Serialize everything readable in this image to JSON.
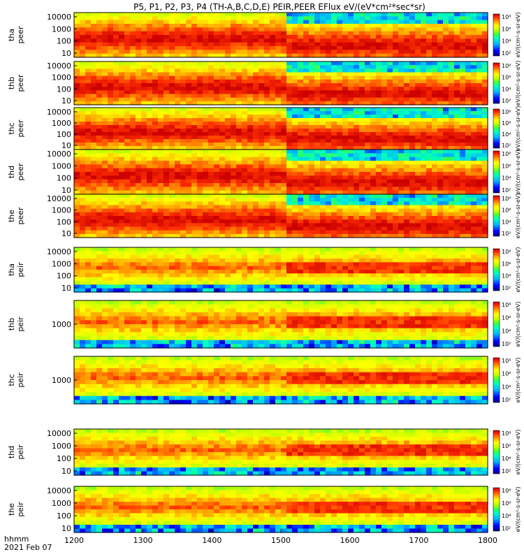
{
  "title": "P5, P1, P2, P3, P4 (TH-A,B,C,D,E) PEIR,PEER EFlux eV/(eV*cm²*sec*sr)",
  "time_label": "hhmm",
  "date_label": "2021 Feb 07",
  "colorbar_unit": "eV/(cm²-s-sr-eV)",
  "chart_data": {
    "type": "heatmap",
    "x_ticks": [
      "1200",
      "1300",
      "1400",
      "1500",
      "1600",
      "1700",
      "1800"
    ],
    "x_range": [
      1200,
      1800
    ],
    "colorbar_labels": [
      "10²",
      "10⁴",
      "10⁶",
      "10⁸"
    ],
    "panels": [
      {
        "label1": "tha",
        "label2": "peer",
        "ticks": [
          "10000",
          "1000",
          "100",
          "10"
        ]
      },
      {
        "label1": "thb",
        "label2": "peer",
        "ticks": [
          "10000",
          "1000",
          "100",
          "10"
        ]
      },
      {
        "label1": "thc",
        "label2": "peer",
        "ticks": [
          "10000",
          "1000",
          "100",
          "10"
        ]
      },
      {
        "label1": "thd",
        "label2": "peer",
        "ticks": [
          "10000",
          "1000",
          "100",
          "10"
        ]
      },
      {
        "label1": "the",
        "label2": "peer",
        "ticks": [
          "10000",
          "1000",
          "100",
          "10"
        ]
      },
      {
        "label1": "tha",
        "label2": "peir",
        "ticks": [
          "10000",
          "1000",
          "100",
          "10"
        ]
      },
      {
        "label1": "thb",
        "label2": "peir",
        "ticks": [
          "1000"
        ]
      },
      {
        "label1": "thc",
        "label2": "peir",
        "ticks": [
          "1000"
        ]
      },
      {
        "label1": "thd",
        "label2": "peir",
        "ticks": [
          "10000",
          "1000",
          "100",
          "10"
        ]
      },
      {
        "label1": "the",
        "label2": "peir",
        "ticks": [
          "10000",
          "1000",
          "100",
          "10"
        ]
      }
    ]
  },
  "colors": {
    "scale": [
      "#000080",
      "#0000ff",
      "#00b4ff",
      "#00ffc0",
      "#40ff40",
      "#c8ff00",
      "#ffff00",
      "#ffa000",
      "#ff3000",
      "#cc0000"
    ]
  }
}
